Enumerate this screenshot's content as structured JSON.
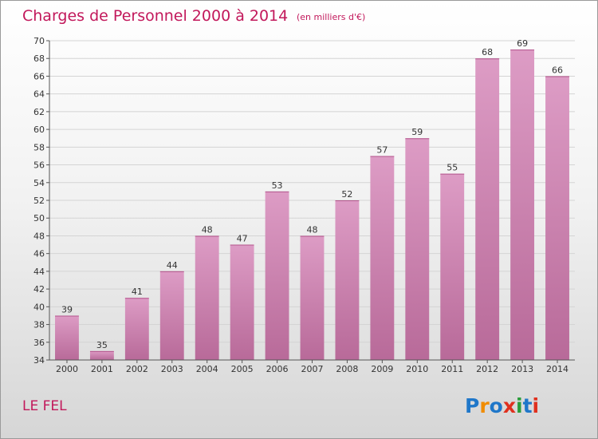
{
  "chart_data": {
    "type": "bar",
    "title": "Charges de Personnel 2000 à 2014",
    "subtitle": "(en milliers d'€)",
    "categories": [
      "2000",
      "2001",
      "2002",
      "2003",
      "2004",
      "2005",
      "2006",
      "2007",
      "2008",
      "2009",
      "2010",
      "2011",
      "2012",
      "2013",
      "2014"
    ],
    "values": [
      39,
      35,
      41,
      44,
      48,
      47,
      53,
      48,
      52,
      57,
      59,
      55,
      68,
      69,
      66
    ],
    "ylim": [
      34,
      70
    ],
    "ytick_step": 2,
    "grid": true,
    "colors": {
      "bar": "#dd9cc5",
      "bar_dark": "#b86a99",
      "title": "#c2185b"
    }
  },
  "footer": {
    "place_name": "LE FEL",
    "logo": {
      "text": "Proxiti",
      "letters": [
        "P",
        "r",
        "o",
        "x",
        "i",
        "t",
        "i"
      ],
      "colors": [
        "#1f77c9",
        "#f08c00",
        "#1f77c9",
        "#e0301e",
        "#2a9d3a",
        "#1f77c9",
        "#e0301e"
      ]
    }
  }
}
